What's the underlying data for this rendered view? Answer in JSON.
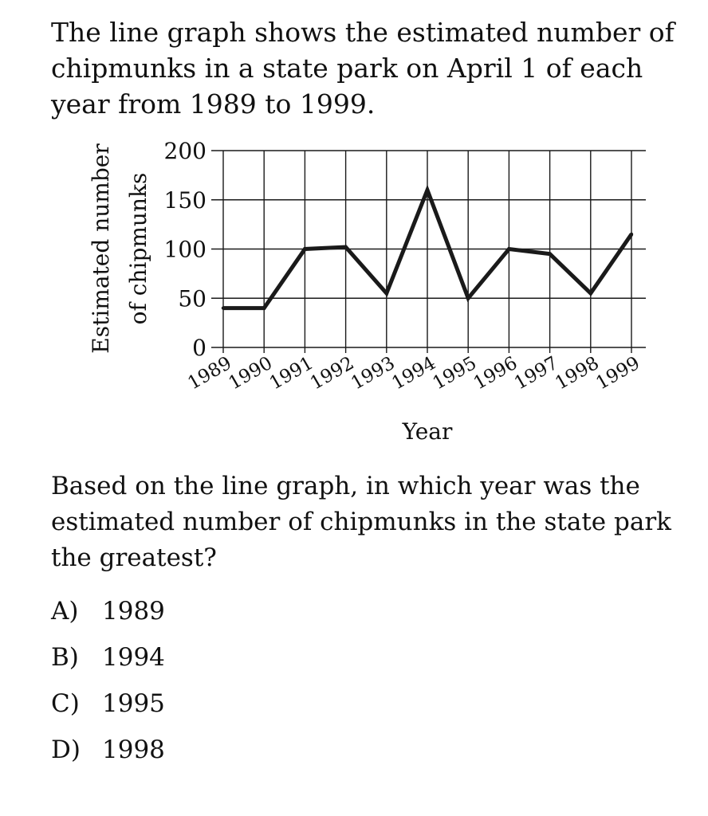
{
  "intro_text": "The line graph shows the estimated number of chipmunks in a state park on April 1 of each year from 1989 to 1999.",
  "question_text": "Based on the line graph, in which year was the estimated number of chipmunks in the state park the greatest?",
  "choices": [
    {
      "letter": "A)",
      "text": "1989"
    },
    {
      "letter": "B)",
      "text": "1994"
    },
    {
      "letter": "C)",
      "text": "1995"
    },
    {
      "letter": "D)",
      "text": "1998"
    }
  ],
  "chart_data": {
    "type": "line",
    "title": "",
    "xlabel": "Year",
    "ylabel_lines": [
      "Estimated number",
      "of chipmunks"
    ],
    "categories": [
      "1989",
      "1990",
      "1991",
      "1992",
      "1993",
      "1994",
      "1995",
      "1996",
      "1997",
      "1998",
      "1999"
    ],
    "series": [
      {
        "values": [
          40,
          40,
          100,
          102,
          55,
          160,
          50,
          100,
          95,
          55,
          115
        ]
      }
    ],
    "ylim": [
      0,
      200
    ],
    "yticks": [
      0,
      50,
      100,
      150,
      200
    ],
    "grid": true,
    "line_color": "#1a1a1a"
  }
}
